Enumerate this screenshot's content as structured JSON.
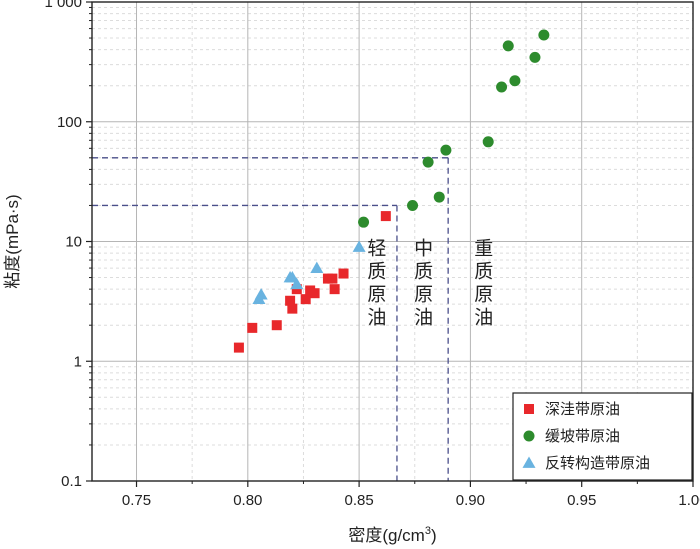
{
  "chart_data": {
    "type": "scatter",
    "x_scale": "linear",
    "y_scale": "log",
    "xlim": [
      0.73,
      1.0
    ],
    "ylim": [
      0.1,
      1000
    ],
    "x_ticks": [
      "0.75",
      "0.80",
      "0.85",
      "0.90",
      "0.95",
      "1.00"
    ],
    "x_tick_values": [
      0.75,
      0.8,
      0.85,
      0.9,
      0.95,
      1.0
    ],
    "y_ticks": [
      "0.1",
      "1",
      "10",
      "100",
      "1 000"
    ],
    "y_tick_values": [
      0.1,
      1,
      10,
      100,
      1000
    ],
    "xlabel": {
      "main": "密度(g/cm",
      "sup": "3",
      "tail": ")"
    },
    "ylabel": "粘度(mPa·s)",
    "grid": true,
    "legend_position": "bottom-right",
    "series": [
      {
        "name": "深洼带原油",
        "marker": "square",
        "color": "#e8282b",
        "points": [
          [
            0.796,
            1.3
          ],
          [
            0.802,
            1.9
          ],
          [
            0.813,
            2.0
          ],
          [
            0.819,
            3.2
          ],
          [
            0.82,
            2.75
          ],
          [
            0.822,
            4.0
          ],
          [
            0.826,
            3.3
          ],
          [
            0.828,
            3.9
          ],
          [
            0.83,
            3.7
          ],
          [
            0.836,
            4.9
          ],
          [
            0.838,
            4.9
          ],
          [
            0.839,
            4.0
          ],
          [
            0.843,
            5.4
          ],
          [
            0.862,
            16.3
          ]
        ]
      },
      {
        "name": "缓坡带原油",
        "marker": "circle",
        "color": "#2d8b2d",
        "points": [
          [
            0.852,
            14.5
          ],
          [
            0.874,
            20.0
          ],
          [
            0.881,
            46.0
          ],
          [
            0.886,
            23.5
          ],
          [
            0.889,
            58.0
          ],
          [
            0.908,
            68.0
          ],
          [
            0.914,
            195.0
          ],
          [
            0.917,
            430.0
          ],
          [
            0.92,
            220.0
          ],
          [
            0.929,
            345.0
          ],
          [
            0.933,
            530.0
          ]
        ]
      },
      {
        "name": "反转构造带原油",
        "marker": "triangle",
        "color": "#69b3e0",
        "points": [
          [
            0.805,
            3.3
          ],
          [
            0.806,
            3.6
          ],
          [
            0.819,
            5.0
          ],
          [
            0.82,
            5.0
          ],
          [
            0.822,
            4.4
          ],
          [
            0.831,
            6.0
          ],
          [
            0.85,
            9.0
          ]
        ]
      }
    ],
    "reference_lines": [
      {
        "x": 0.867,
        "y": 20
      },
      {
        "x": 0.89,
        "y": 50
      }
    ],
    "region_labels": [
      {
        "text": "轻质原油",
        "x": 0.858,
        "y_top": 7.8
      },
      {
        "text": "中质原油",
        "x": 0.879,
        "y_top": 7.8
      },
      {
        "text": "重质原油",
        "x": 0.906,
        "y_top": 7.8
      }
    ]
  }
}
